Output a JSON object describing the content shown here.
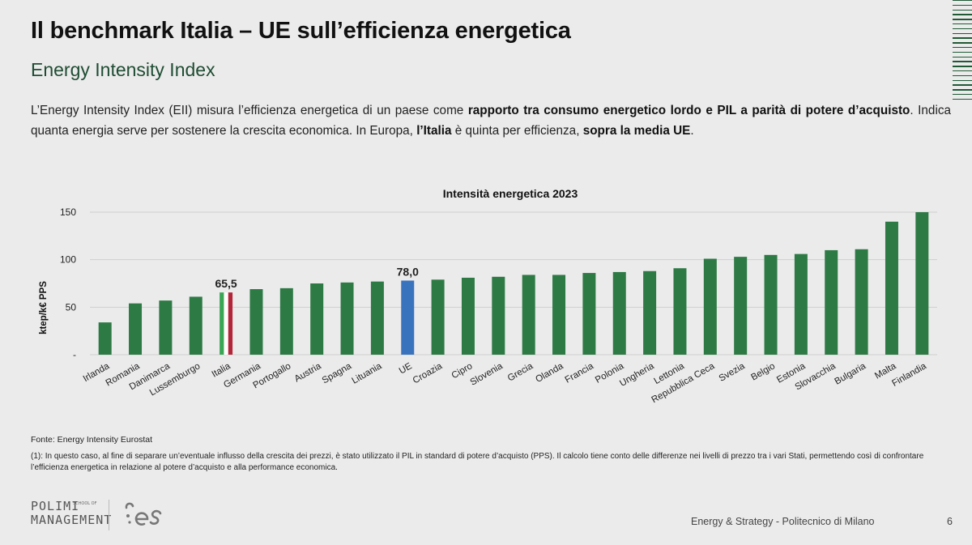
{
  "header": {
    "title": "Il benchmark Italia – UE sull’efficienza energetica",
    "subtitle": "Energy Intensity Index"
  },
  "intro": {
    "p1": "L’Energy Intensity Index (EII) misura l’efficienza energetica di un paese come ",
    "b1": "rapporto tra consumo energetico lordo e PIL a parità di potere d’acquisto",
    "p2": ". Indica quanta energia serve per sostenere la crescita economica. In Europa, ",
    "b2": "l’Italia",
    "p3": " è quinta per efficienza, ",
    "b3": "sopra la media UE",
    "p4": "."
  },
  "colors": {
    "bar": "#2e7a45",
    "eu": "#3a73bd",
    "italy_green": "#3aa654",
    "italy_white": "#ffffff",
    "italy_red": "#b3263a",
    "grid": "#cfcfcf"
  },
  "chart_data": {
    "type": "bar",
    "title": "Intensità energetica 2023",
    "ylabel": "ktep/k€ PPS",
    "xlabel": "",
    "ylim": [
      0,
      150
    ],
    "yticks": [
      {
        "value": 0,
        "label": "-"
      },
      {
        "value": 50,
        "label": "50"
      },
      {
        "value": 100,
        "label": "100"
      },
      {
        "value": 150,
        "label": "150"
      }
    ],
    "categories": [
      "Irlanda",
      "Romania",
      "Danimarca",
      "Lussemburgo",
      "Italia",
      "Germania",
      "Portogallo",
      "Austria",
      "Spagna",
      "Lituania",
      "UE",
      "Croazia",
      "Cipro",
      "Slovenia",
      "Grecia",
      "Olanda",
      "Francia",
      "Polonia",
      "Ungheria",
      "Lettonia",
      "Repubblica Ceca",
      "Svezia",
      "Belgio",
      "Estonia",
      "Slovacchia",
      "Bulgaria",
      "Malta",
      "Finlandia"
    ],
    "values": [
      34,
      54,
      57,
      61,
      65.5,
      69,
      70,
      75,
      76,
      77,
      78,
      79,
      81,
      82,
      84,
      84,
      86,
      87,
      88,
      91,
      101,
      103,
      105,
      106,
      110,
      111,
      140,
      150
    ],
    "data_labels": [
      {
        "category": "Italia",
        "label": "65,5"
      },
      {
        "category": "UE",
        "label": "78,0"
      }
    ],
    "grid": true,
    "legend": "none"
  },
  "footer": {
    "source": "Fonte: Energy Intensity Eurostat",
    "note": "(1): In questo caso, al fine di separare un’eventuale influsso della crescita dei prezzi, è stato utilizzato il PIL in standard di potere d’acquisto (PPS). Il calcolo tiene conto delle differenze nei livelli di prezzo tra i vari Stati, permettendo così di confrontare l’efficienza energetica in relazione al potere d’acquisto e alla performance economica.",
    "credit": "Energy & Strategy - Politecnico di Milano",
    "page": "6",
    "logo_line1": "POLIMI",
    "logo_line2": "MANAGEMENT",
    "logo_school": "SCHOOL OF"
  }
}
